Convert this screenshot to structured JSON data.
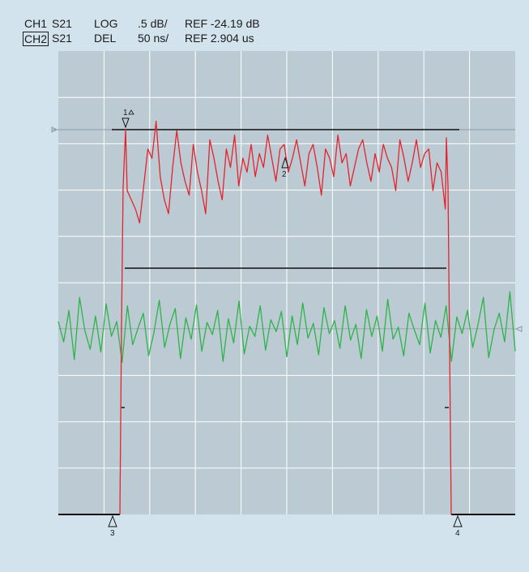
{
  "header": {
    "ch1": {
      "name": "CH1",
      "param": "S21",
      "format": "LOG",
      "scale": ".5 dB/",
      "ref": "REF -24.19 dB"
    },
    "ch2": {
      "name": "CH2",
      "param": "S21",
      "format": "DEL",
      "scale": "50 ns/",
      "ref": "REF 2.904 us"
    }
  },
  "markers": {
    "m1": "1",
    "m2": "2",
    "m3": "3",
    "m4": "4"
  },
  "colors": {
    "background": "#d3e3ee",
    "grid_area": "#bccbd3",
    "grid_lines": "#ffffff",
    "trace_ch1": "#e3232e",
    "trace_ch2": "#2db34a",
    "reference_line": "#8a9aa4",
    "annotation": "#111111"
  },
  "chart_data": [
    {
      "type": "line",
      "series": [
        {
          "name": "CH1",
          "values": [
            -24.85,
            -24.95,
            -25.05,
            -25.2,
            -24.8,
            -24.4,
            -24.5,
            -24.1,
            -24.7,
            -24.95,
            -25.1,
            -24.6,
            -24.2,
            -24.55,
            -24.75,
            -24.9,
            -24.35,
            -24.65,
            -24.85,
            -25.1,
            -24.3,
            -24.5,
            -24.75,
            -24.95,
            -24.4,
            -24.6,
            -24.25,
            -24.8,
            -24.5,
            -24.65,
            -24.35,
            -24.7,
            -24.45,
            -24.6,
            -24.25,
            -24.5,
            -24.75,
            -24.4,
            -24.35,
            -24.65,
            -24.5,
            -24.3,
            -24.55,
            -24.8,
            -24.45,
            -24.35,
            -24.6,
            -24.9,
            -24.4,
            -24.5,
            -24.7,
            -24.25,
            -24.55,
            -24.45,
            -24.8,
            -24.6,
            -24.4,
            -24.3,
            -24.55,
            -24.75,
            -24.45,
            -24.65,
            -24.35,
            -24.5,
            -24.6,
            -24.85,
            -24.3,
            -24.5,
            -24.75,
            -24.55,
            -24.3,
            -24.6,
            -24.45,
            -24.4,
            -24.85,
            -24.55,
            -24.65,
            -25.05
          ]
        }
      ]
    },
    {
      "type": "line",
      "series": [
        {
          "name": "CH2",
          "values": [
            2.912,
            2.89,
            2.924,
            2.871,
            2.938,
            2.902,
            2.882,
            2.918,
            2.879,
            2.931,
            2.896,
            2.912,
            2.868,
            2.929,
            2.887,
            2.905,
            2.921,
            2.875,
            2.9,
            2.935,
            2.884,
            2.909,
            2.926,
            2.872,
            2.916,
            2.893,
            2.93,
            2.88,
            2.911,
            2.898,
            2.924,
            2.869,
            2.915,
            2.889,
            2.934,
            2.877,
            2.907,
            2.896,
            2.929,
            2.881,
            2.914,
            2.901,
            2.923,
            2.874,
            2.918,
            2.887,
            2.932,
            2.894,
            2.91,
            2.876,
            2.927,
            2.899,
            2.913,
            2.883,
            2.929,
            2.892,
            2.909,
            2.872,
            2.925,
            2.896,
            2.918,
            2.88,
            2.936,
            2.893,
            2.906,
            2.875,
            2.921,
            2.903,
            2.887,
            2.932,
            2.878,
            2.913,
            2.895,
            2.929,
            2.869,
            2.917,
            2.899,
            2.924,
            2.884,
            2.909,
            2.938,
            2.873,
            2.903,
            2.921,
            2.89,
            2.944,
            2.88
          ]
        }
      ]
    }
  ]
}
